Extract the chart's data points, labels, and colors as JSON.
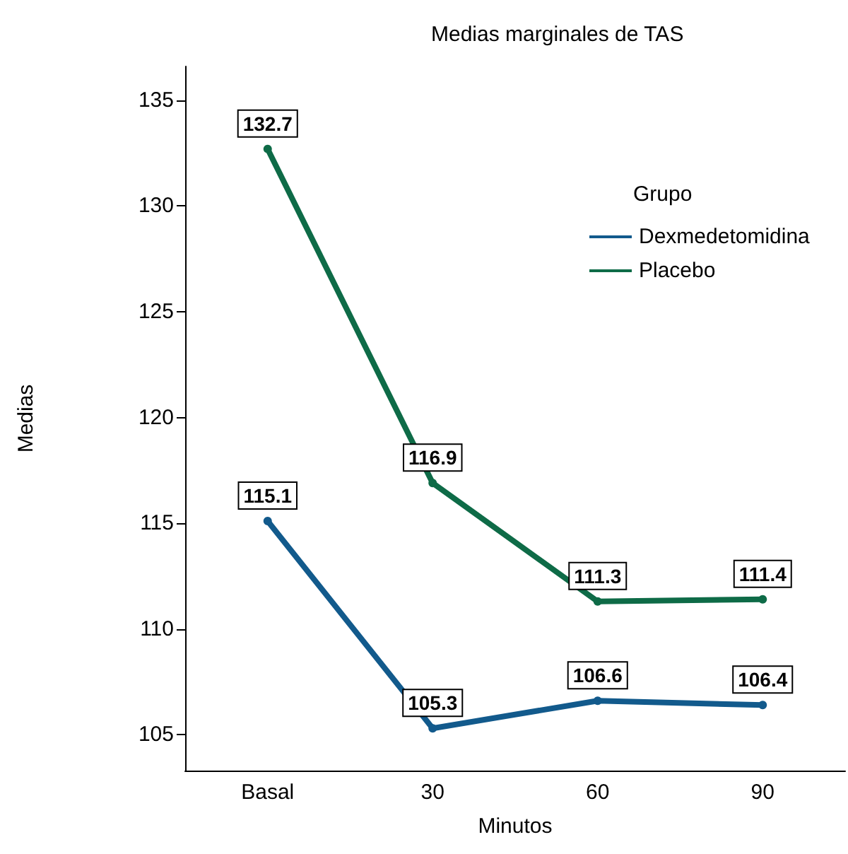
{
  "chart_data": {
    "type": "line",
    "title": "Medias marginales de TAS",
    "xlabel": "Minutos",
    "ylabel": "Medias",
    "legend_title": "Grupo",
    "categories": [
      "Basal",
      "30",
      "60",
      "90"
    ],
    "series": [
      {
        "name": "Dexmedetomidina",
        "color": "#125a8c",
        "values": [
          115.1,
          105.3,
          106.6,
          106.4
        ]
      },
      {
        "name": "Placebo",
        "color": "#0e6b47",
        "values": [
          132.7,
          116.9,
          111.3,
          111.4
        ]
      }
    ],
    "ylim": [
      103.3,
      136.6
    ],
    "yticks": [
      105,
      110,
      115,
      120,
      125,
      130,
      135
    ],
    "grid": false,
    "legend": "top right",
    "marker": "circle",
    "line_style": "solid",
    "data_labels": true
  }
}
